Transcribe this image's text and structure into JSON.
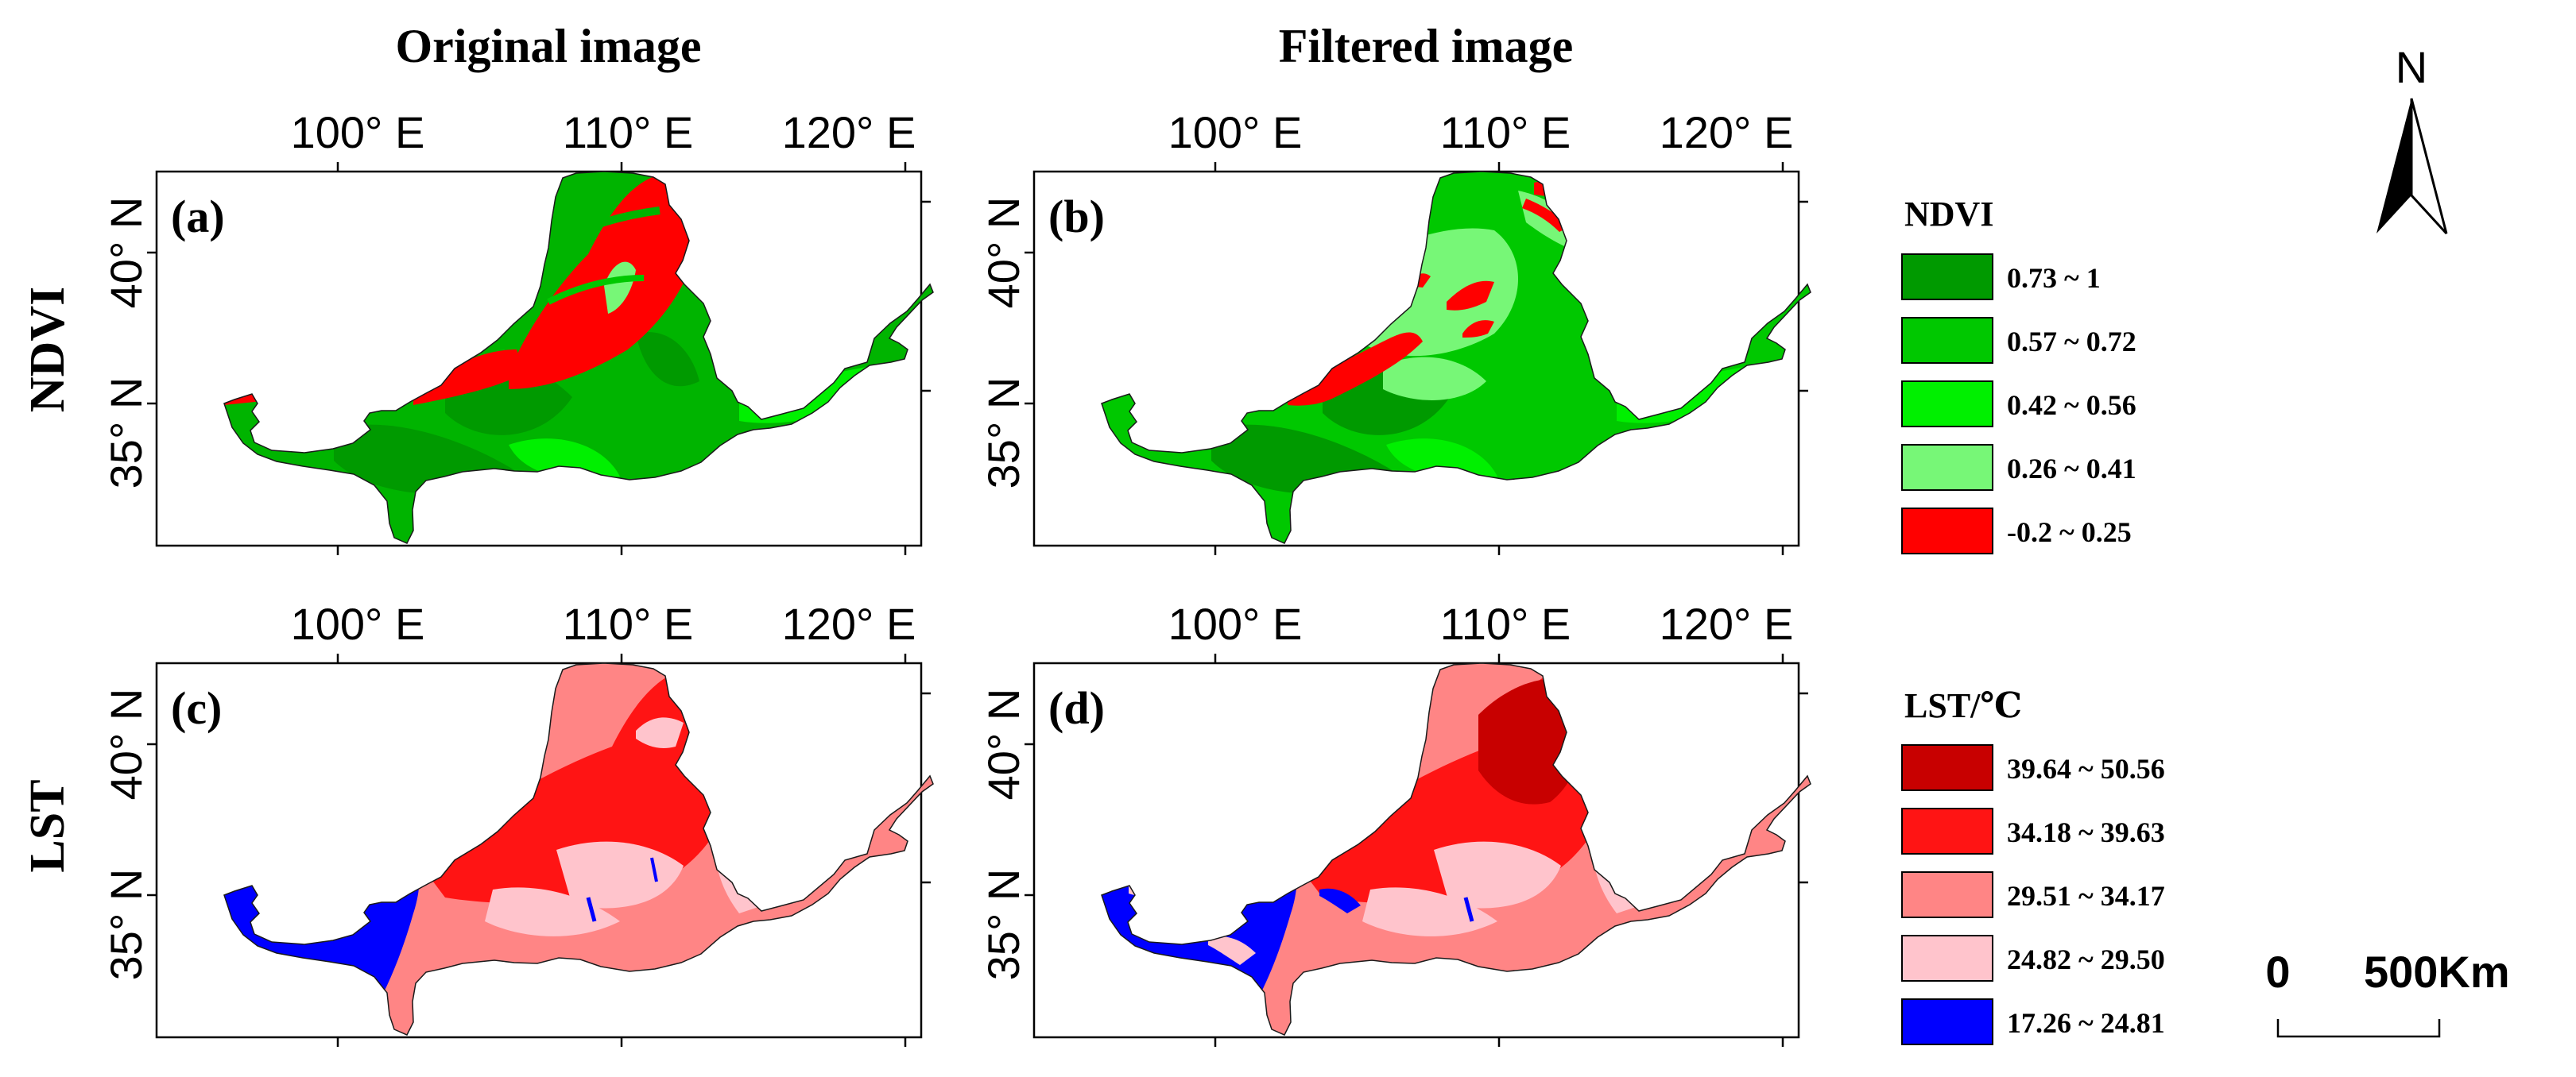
{
  "columns": {
    "left_title": "Original image",
    "right_title": "Filtered image"
  },
  "rows": {
    "top_label": "NDVI",
    "bottom_label": "LST"
  },
  "axes": {
    "lon_labels": [
      "100° E",
      "110° E",
      "120° E"
    ],
    "lat_labels": [
      "40° N",
      "35° N"
    ]
  },
  "panels": [
    {
      "label": "(a)",
      "variable": "NDVI",
      "version": "Original image"
    },
    {
      "label": "(b)",
      "variable": "NDVI",
      "version": "Filtered image"
    },
    {
      "label": "(c)",
      "variable": "LST",
      "version": "Original image"
    },
    {
      "label": "(d)",
      "variable": "LST",
      "version": "Filtered image"
    }
  ],
  "legends": {
    "ndvi": {
      "title": "NDVI",
      "classes": [
        {
          "label": "0.73 ~ 1",
          "color": "#009a00"
        },
        {
          "label": "0.57 ~ 0.72",
          "color": "#00c800"
        },
        {
          "label": "0.42 ~ 0.56",
          "color": "#00f000"
        },
        {
          "label": "0.26 ~ 0.41",
          "color": "#77f777"
        },
        {
          "label": "-0.2 ~ 0.25",
          "color": "#ff0000"
        }
      ]
    },
    "lst": {
      "title": "LST/℃",
      "classes": [
        {
          "label": "39.64 ~ 50.56",
          "color": "#c80000"
        },
        {
          "label": "34.18 ~ 39.63",
          "color": "#ff1414"
        },
        {
          "label": "29.51 ~ 34.17",
          "color": "#ff8585"
        },
        {
          "label": "24.82 ~ 29.50",
          "color": "#ffc4cc"
        },
        {
          "label": "17.26 ~ 24.81",
          "color": "#0000ff"
        }
      ]
    }
  },
  "north_arrow": {
    "label": "N"
  },
  "scale_bar": {
    "label_start": "0",
    "label_end": "500Km"
  }
}
